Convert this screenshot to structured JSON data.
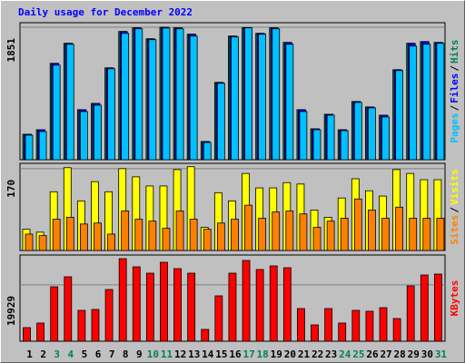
{
  "chart_data": [
    {
      "type": "bar",
      "title": "Daily usage for December 2022",
      "legend_separator": "/",
      "categories": [
        "1",
        "2",
        "3",
        "4",
        "5",
        "6",
        "7",
        "8",
        "9",
        "10",
        "11",
        "12",
        "13",
        "14",
        "15",
        "16",
        "17",
        "18",
        "19",
        "20",
        "21",
        "22",
        "23",
        "24",
        "25",
        "26",
        "27",
        "28",
        "29",
        "30",
        "31"
      ],
      "ylim": [
        0,
        1914
      ],
      "yticks": [
        1851
      ],
      "grid": true,
      "series": [
        {
          "name": "Hits",
          "color": "#00805c",
          "values": [
            356,
            419,
            1346,
            1626,
            699,
            787,
            1283,
            1791,
            1842,
            1689,
            1851,
            1842,
            1753,
            254,
            1080,
            1727,
            1846,
            1765,
            1842,
            1638,
            699,
            432,
            635,
            419,
            813,
            737,
            622,
            1257,
            1626,
            1650,
            1638
          ]
        },
        {
          "name": "Files",
          "color": "#0000ff",
          "values": [
            356,
            419,
            1346,
            1626,
            699,
            787,
            1283,
            1791,
            1842,
            1689,
            1851,
            1842,
            1753,
            254,
            1080,
            1727,
            1846,
            1765,
            1842,
            1638,
            699,
            432,
            635,
            419,
            813,
            737,
            622,
            1257,
            1626,
            1650,
            1638
          ]
        },
        {
          "name": "Pages",
          "color": "#00c0ff",
          "values": [
            343,
            394,
            1321,
            1613,
            673,
            762,
            1270,
            1765,
            1829,
            1677,
            1839,
            1829,
            1727,
            241,
            1067,
            1715,
            1842,
            1753,
            1829,
            1613,
            673,
            419,
            622,
            406,
            800,
            724,
            597,
            1245,
            1588,
            1613,
            1626
          ]
        }
      ]
    },
    {
      "type": "bar",
      "legend_separator": "/",
      "categories": [
        "1",
        "2",
        "3",
        "4",
        "5",
        "6",
        "7",
        "8",
        "9",
        "10",
        "11",
        "12",
        "13",
        "14",
        "15",
        "16",
        "17",
        "18",
        "19",
        "20",
        "21",
        "22",
        "23",
        "24",
        "25",
        "26",
        "27",
        "28",
        "29",
        "30",
        "31"
      ],
      "ylim": [
        0,
        181
      ],
      "yticks": [
        170
      ],
      "grid": true,
      "series": [
        {
          "name": "Visits",
          "color": "#ffff00",
          "values": [
            44,
            38,
            122,
            172,
            103,
            143,
            122,
            170,
            153,
            134,
            134,
            168,
            174,
            48,
            120,
            103,
            160,
            130,
            130,
            141,
            138,
            84,
            69,
            109,
            149,
            124,
            113,
            168,
            160,
            147,
            147
          ]
        },
        {
          "name": "Sites",
          "color": "#ff8000",
          "values": [
            34,
            31,
            65,
            69,
            55,
            57,
            34,
            82,
            65,
            61,
            46,
            82,
            65,
            44,
            57,
            65,
            94,
            67,
            80,
            82,
            76,
            48,
            61,
            67,
            107,
            84,
            67,
            90,
            67,
            67,
            67
          ]
        }
      ]
    },
    {
      "type": "bar",
      "categories": [
        "1",
        "2",
        "3",
        "4",
        "5",
        "6",
        "7",
        "8",
        "9",
        "10",
        "11",
        "12",
        "13",
        "14",
        "15",
        "16",
        "17",
        "18",
        "19",
        "20",
        "21",
        "22",
        "23",
        "24",
        "25",
        "26",
        "27",
        "28",
        "29",
        "30",
        "31"
      ],
      "highlight_categories": [
        "3",
        "4",
        "10",
        "11",
        "17",
        "18",
        "24",
        "25",
        "31"
      ],
      "highlight_color": "#00805c",
      "ylim": [
        0,
        30500
      ],
      "yticks": [
        19929
      ],
      "grid": true,
      "series": [
        {
          "name": "KBytes",
          "color": "#ff0000",
          "values": [
            4815,
            6420,
            19260,
            22791,
            10914,
            11235,
            18297,
            29211,
            26322,
            24075,
            27927,
            25680,
            24075,
            4173,
            16050,
            24075,
            28569,
            25359,
            26643,
            25998,
            11556,
            5778,
            11556,
            6420,
            10914,
            10593,
            11877,
            8025,
            19581,
            23433,
            23754
          ]
        }
      ]
    }
  ]
}
